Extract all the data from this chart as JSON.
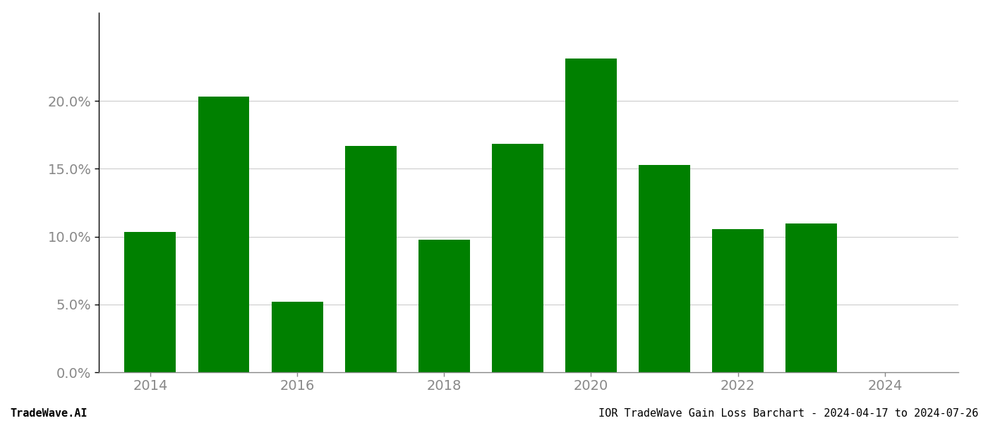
{
  "years": [
    2014,
    2015,
    2016,
    2017,
    2018,
    2019,
    2020,
    2021,
    2022,
    2023
  ],
  "values": [
    0.1035,
    0.203,
    0.052,
    0.167,
    0.0975,
    0.1685,
    0.231,
    0.153,
    0.1055,
    0.1095
  ],
  "bar_color": "#008000",
  "background_color": "#ffffff",
  "grid_color": "#cccccc",
  "axis_color": "#888888",
  "tick_label_color": "#888888",
  "ylabel_ticks": [
    0.0,
    0.05,
    0.1,
    0.15,
    0.2
  ],
  "ylim": [
    0,
    0.265
  ],
  "xlim": [
    2013.3,
    2025.0
  ],
  "xtick_positions": [
    2014,
    2016,
    2018,
    2020,
    2022,
    2024
  ],
  "footer_left": "TradeWave.AI",
  "footer_right": "IOR TradeWave Gain Loss Barchart - 2024-04-17 to 2024-07-26",
  "footer_fontsize": 11,
  "tick_fontsize": 14,
  "bar_width": 0.7,
  "figsize": [
    14.0,
    6.0
  ],
  "dpi": 100
}
